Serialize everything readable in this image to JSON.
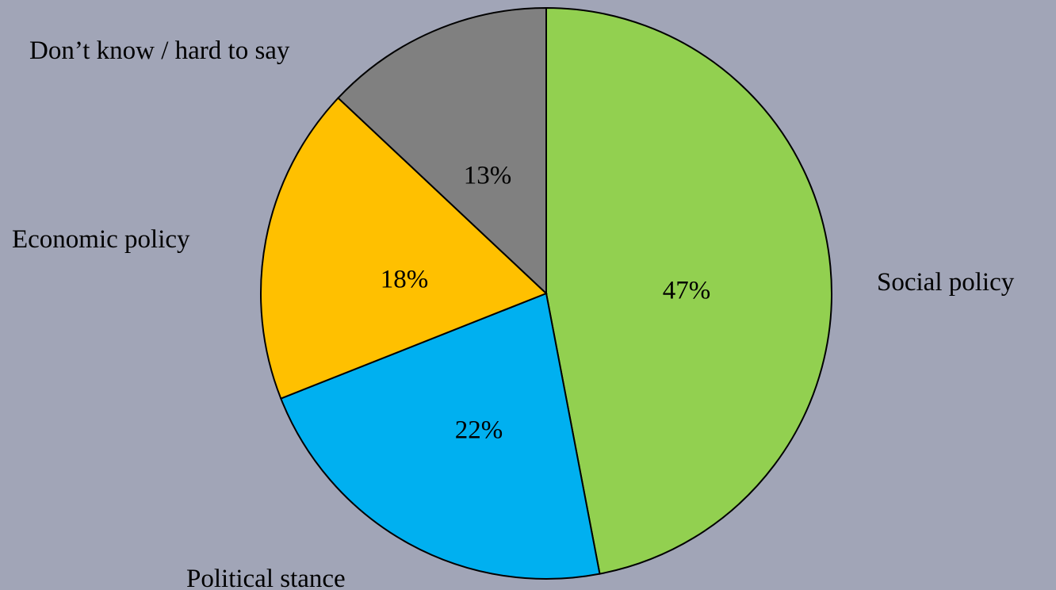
{
  "chart_data": {
    "type": "pie",
    "title": "",
    "slices": [
      {
        "label": "Social policy",
        "value": 47,
        "data_label": "47%",
        "color": "#92d050"
      },
      {
        "label": "Political stance",
        "value": 22,
        "data_label": "22%",
        "color": "#00b0f0"
      },
      {
        "label": "Economic policy",
        "value": 18,
        "data_label": "18%",
        "color": "#ffc000"
      },
      {
        "label": "Don’t know / hard to say",
        "value": 13,
        "data_label": "13%",
        "color": "#808080"
      }
    ],
    "start": "12 o'clock",
    "direction": "clockwise",
    "legend": "none",
    "background": "#a1a5b7"
  }
}
